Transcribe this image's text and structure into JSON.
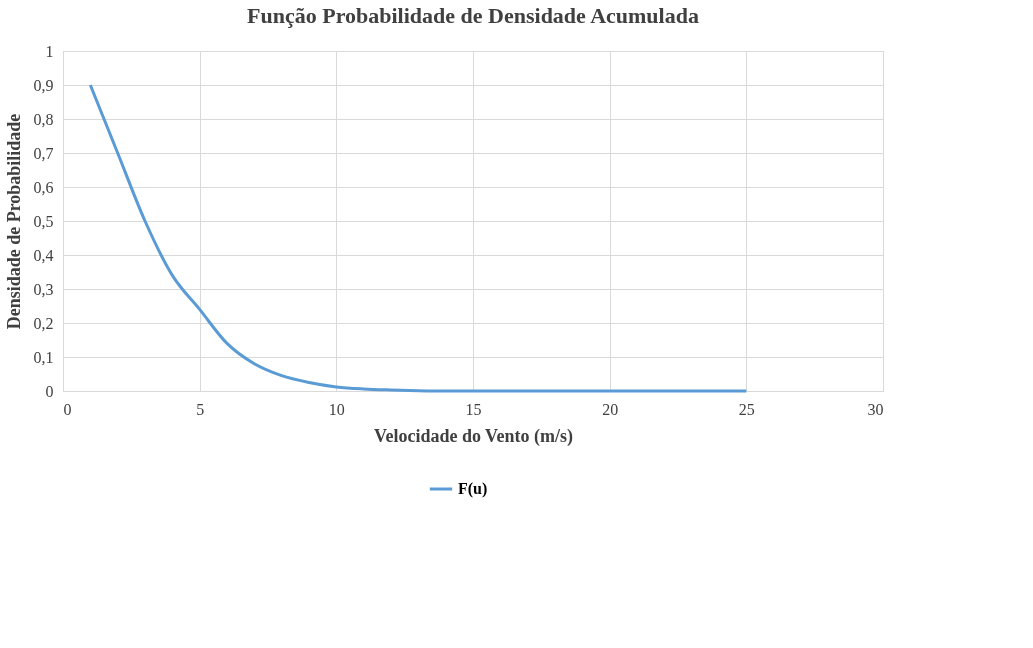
{
  "chart_data": {
    "type": "line",
    "title": "Função Probabilidade de Densidade Acumulada",
    "xlabel": "Velocidade do Vento (m/s)",
    "ylabel": "Densidade de Probabilidade",
    "x": [
      1,
      2,
      3,
      4,
      5,
      6,
      7,
      8,
      9,
      10,
      11,
      12,
      13,
      14,
      15,
      16,
      17,
      18,
      19,
      20,
      21,
      22,
      23,
      24,
      25
    ],
    "series": [
      {
        "name": "F(u)",
        "color": "#5b9bd5",
        "values": [
          0.9,
          0.7,
          0.5,
          0.34,
          0.24,
          0.14,
          0.08,
          0.045,
          0.025,
          0.012,
          0.006,
          0.003,
          0.001,
          0,
          0,
          0,
          0,
          0,
          0,
          0,
          0,
          0,
          0,
          0,
          0
        ]
      }
    ],
    "xlim": [
      0,
      30
    ],
    "xticks": [
      0,
      5,
      10,
      15,
      20,
      25,
      30
    ],
    "ylim": [
      0,
      1
    ],
    "yticks": [
      0,
      {
        "value": 0.1,
        "label": "0,1"
      },
      {
        "value": 0.2,
        "label": "0,2"
      },
      {
        "value": 0.3,
        "label": "0,3"
      },
      {
        "value": 0.4,
        "label": "0,4"
      },
      {
        "value": 0.5,
        "label": "0,5"
      },
      {
        "value": 0.6,
        "label": "0,6"
      },
      {
        "value": 0.7,
        "label": "0,7"
      },
      {
        "value": 0.8,
        "label": "0,8"
      },
      {
        "value": 0.9,
        "label": "0,9"
      },
      1
    ],
    "grid": true,
    "legend": "bottom",
    "marker": "none",
    "line_style": "solid"
  }
}
